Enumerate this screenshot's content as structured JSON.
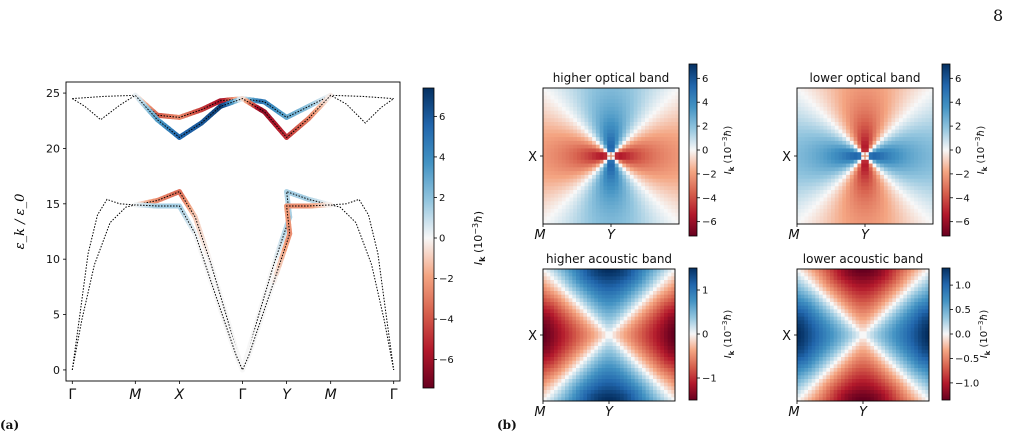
{
  "page": {
    "number": "8"
  },
  "panel_labels": {
    "a": "(a)",
    "b": "(b)"
  },
  "colors": {
    "negative": "#67001f",
    "neutral": "#f7f7f7",
    "positive": "#053061",
    "curve": "#000000"
  },
  "chart_data": [
    {
      "id": "a",
      "type": "line",
      "title": "",
      "xlabel": "",
      "ylabel": "ε_k / ε_0",
      "ylim": [
        -1,
        26
      ],
      "yticks": [
        0,
        5,
        10,
        15,
        20,
        25
      ],
      "xticks": [
        {
          "label": "Γ",
          "x": 0
        },
        {
          "label": "M",
          "x": 1
        },
        {
          "label": "X",
          "x": 1.7
        },
        {
          "label": "Γ",
          "x": 2.7
        },
        {
          "label": "Y",
          "x": 3.4
        },
        {
          "label": "M",
          "x": 4.1
        },
        {
          "label": "Γ",
          "x": 5.1
        }
      ],
      "xlim": [
        -0.1,
        5.2
      ],
      "colorbar": {
        "label": "I_k (10^-3 ħ)",
        "ticks": [
          -6,
          -4,
          -2,
          0,
          2,
          4,
          6
        ],
        "range": [
          -7.4,
          7.4
        ]
      },
      "series": [
        {
          "points": [
            [
              0,
              24.5
            ],
            [
              0.5,
              24.7
            ],
            [
              1,
              24.8
            ],
            [
              1.35,
              23.0
            ],
            [
              1.7,
              22.8
            ],
            [
              2.05,
              23.5
            ],
            [
              2.35,
              24.3
            ],
            [
              2.7,
              24.5
            ],
            [
              3.05,
              24.2
            ],
            [
              3.4,
              22.8
            ],
            [
              3.75,
              23.8
            ],
            [
              4.1,
              24.8
            ],
            [
              4.6,
              24.7
            ],
            [
              5.1,
              24.5
            ]
          ],
          "coloring": [
            [
              1,
              0
            ],
            [
              1.4,
              -4
            ],
            [
              1.7,
              -2.5
            ],
            [
              2.05,
              -4.5
            ],
            [
              2.4,
              -6
            ],
            [
              2.7,
              0
            ],
            [
              3.0,
              5
            ],
            [
              3.4,
              3
            ],
            [
              3.75,
              2
            ],
            [
              4.1,
              0
            ]
          ]
        },
        {
          "points": [
            [
              0,
              24.5
            ],
            [
              0.2,
              23.8
            ],
            [
              0.45,
              22.6
            ],
            [
              0.75,
              23.9
            ],
            [
              1,
              24.8
            ],
            [
              1.35,
              22.6
            ],
            [
              1.7,
              21.0
            ],
            [
              2.05,
              22.3
            ],
            [
              2.35,
              23.8
            ],
            [
              2.7,
              24.5
            ],
            [
              3.05,
              23.3
            ],
            [
              3.4,
              21.0
            ],
            [
              3.75,
              22.7
            ],
            [
              4.1,
              24.8
            ],
            [
              4.35,
              24.0
            ],
            [
              4.65,
              22.3
            ],
            [
              4.9,
              23.7
            ],
            [
              5.1,
              24.5
            ]
          ],
          "coloring": [
            [
              1,
              0
            ],
            [
              1.35,
              3
            ],
            [
              1.7,
              5.5
            ],
            [
              2.05,
              6
            ],
            [
              2.4,
              7
            ],
            [
              2.7,
              0
            ],
            [
              3.0,
              -6.5
            ],
            [
              3.4,
              -5
            ],
            [
              3.75,
              -3
            ],
            [
              4.1,
              0
            ]
          ]
        },
        {
          "points": [
            [
              0,
              0
            ],
            [
              0.12,
              5
            ],
            [
              0.25,
              10.5
            ],
            [
              0.4,
              14
            ],
            [
              0.55,
              15.4
            ],
            [
              0.75,
              15.0
            ],
            [
              1,
              14.9
            ],
            [
              1.35,
              15.3
            ],
            [
              1.7,
              16.1
            ],
            [
              1.95,
              13.8
            ],
            [
              2.2,
              9.6
            ],
            [
              2.45,
              4.8
            ],
            [
              2.6,
              1.8
            ],
            [
              2.7,
              0
            ],
            [
              2.8,
              1.8
            ],
            [
              2.95,
              4.8
            ],
            [
              3.2,
              9.6
            ],
            [
              3.45,
              13.8
            ],
            [
              3.4,
              16.1
            ],
            [
              3.75,
              15.4
            ],
            [
              4.1,
              14.9
            ],
            [
              4.35,
              15.0
            ],
            [
              4.55,
              15.4
            ],
            [
              4.7,
              14
            ],
            [
              4.85,
              10.5
            ],
            [
              4.98,
              5
            ],
            [
              5.1,
              0
            ]
          ],
          "coloring": [
            [
              1,
              0
            ],
            [
              1.35,
              -2.5
            ],
            [
              1.7,
              -3.5
            ],
            [
              1.95,
              -1
            ],
            [
              2.2,
              0
            ],
            [
              3.2,
              0
            ],
            [
              3.45,
              1.5
            ],
            [
              3.6,
              1.5
            ],
            [
              3.75,
              1.5
            ],
            [
              4.1,
              0
            ]
          ]
        },
        {
          "points": [
            [
              0,
              0
            ],
            [
              0.15,
              4.5
            ],
            [
              0.35,
              9.5
            ],
            [
              0.6,
              13.3
            ],
            [
              0.85,
              14.7
            ],
            [
              1,
              14.9
            ],
            [
              1.35,
              14.8
            ],
            [
              1.7,
              14.8
            ],
            [
              1.95,
              12.3
            ],
            [
              2.2,
              8
            ],
            [
              2.45,
              3.8
            ],
            [
              2.6,
              1.3
            ],
            [
              2.7,
              0
            ],
            [
              2.8,
              1.3
            ],
            [
              2.95,
              3.8
            ],
            [
              3.2,
              8
            ],
            [
              3.45,
              12.3
            ],
            [
              3.4,
              14.8
            ],
            [
              3.75,
              14.8
            ],
            [
              4.1,
              14.9
            ],
            [
              4.25,
              14.7
            ],
            [
              4.5,
              13.3
            ],
            [
              4.75,
              9.5
            ],
            [
              4.95,
              4.5
            ],
            [
              5.1,
              0
            ]
          ],
          "coloring": [
            [
              1,
              0
            ],
            [
              1.35,
              1.5
            ],
            [
              1.7,
              1.5
            ],
            [
              2.0,
              0
            ],
            [
              3.2,
              0
            ],
            [
              3.45,
              -2.5
            ],
            [
              3.6,
              -2.5
            ],
            [
              3.75,
              -2.5
            ],
            [
              4.1,
              0
            ]
          ]
        }
      ]
    },
    {
      "id": "b1",
      "type": "heatmap",
      "title": "higher optical band",
      "xticks": [
        "M",
        "Y"
      ],
      "yticks": [
        "X"
      ],
      "colorbar": {
        "label": "I_k (10^-3 ħ)",
        "ticks": [
          -6,
          -4,
          -2,
          0,
          2,
          4,
          6
        ],
        "range": [
          -7.2,
          7.2
        ]
      },
      "pattern": {
        "sign": -1,
        "kind": "optical"
      }
    },
    {
      "id": "b2",
      "type": "heatmap",
      "title": "lower optical band",
      "xticks": [
        "M",
        "Y"
      ],
      "yticks": [
        "X"
      ],
      "colorbar": {
        "label": "I_k (10^-3 ħ)",
        "ticks": [
          -6,
          -4,
          -2,
          0,
          2,
          4,
          6
        ],
        "range": [
          -7.2,
          7.2
        ]
      },
      "pattern": {
        "sign": 1,
        "kind": "optical"
      }
    },
    {
      "id": "b3",
      "type": "heatmap",
      "title": "higher acoustic band",
      "xticks": [
        "M",
        "Y"
      ],
      "yticks": [
        "X"
      ],
      "colorbar": {
        "label": "I_k (10^-3 ħ)",
        "ticks": [
          -1,
          0,
          1
        ],
        "range": [
          -1.5,
          1.5
        ]
      },
      "pattern": {
        "sign": -1,
        "kind": "acoustic"
      }
    },
    {
      "id": "b4",
      "type": "heatmap",
      "title": "lower acoustic band",
      "xticks": [
        "M",
        "Y"
      ],
      "yticks": [
        "X"
      ],
      "colorbar": {
        "label": "I_k (10^-3 ħ)",
        "ticks": [
          -1.0,
          -0.5,
          0.0,
          0.5,
          1.0
        ],
        "range": [
          -1.35,
          1.35
        ]
      },
      "pattern": {
        "sign": 1,
        "kind": "acoustic"
      }
    }
  ]
}
